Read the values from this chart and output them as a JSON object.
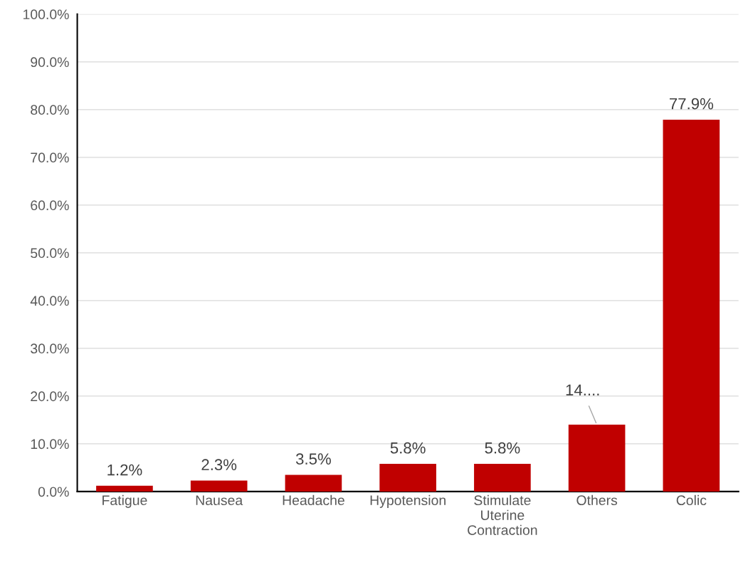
{
  "chart_data": {
    "type": "bar",
    "categories": [
      "Fatigue",
      "Nausea",
      "Headache",
      "Hypotension",
      "Stimulate\nUterine\nContraction",
      "Others",
      "Colic"
    ],
    "values": [
      1.2,
      2.3,
      3.5,
      5.8,
      5.8,
      14.0,
      77.9
    ],
    "value_labels": [
      "1.2%",
      "2.3%",
      "3.5%",
      "5.8%",
      "5.8%",
      "14....",
      "77.9%"
    ],
    "color": "#c00000",
    "ylim": [
      0,
      100
    ],
    "yticks": [
      {
        "value": 0,
        "label": "0.0%"
      },
      {
        "value": 10,
        "label": "10.0%"
      },
      {
        "value": 20,
        "label": "20.0%"
      },
      {
        "value": 30,
        "label": "30.0%"
      },
      {
        "value": 40,
        "label": "40.0%"
      },
      {
        "value": 50,
        "label": "50.0%"
      },
      {
        "value": 60,
        "label": "60.0%"
      },
      {
        "value": 70,
        "label": "70.0%"
      },
      {
        "value": 80,
        "label": "80.0%"
      },
      {
        "value": 90,
        "label": "90.0%"
      },
      {
        "value": 100,
        "label": "100.0%"
      }
    ],
    "grid": "y"
  }
}
